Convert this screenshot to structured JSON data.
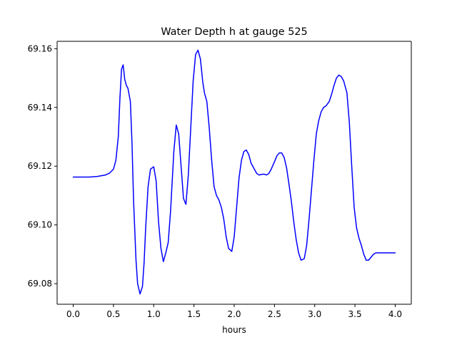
{
  "chart_data": {
    "type": "line",
    "title": "Water Depth h at gauge 525",
    "xlabel": "hours",
    "ylabel": "",
    "xlim": [
      -0.2,
      4.2
    ],
    "ylim": [
      69.073,
      69.1625
    ],
    "xticks": [
      0.0,
      0.5,
      1.0,
      1.5,
      2.0,
      2.5,
      3.0,
      3.5,
      4.0
    ],
    "xtick_labels": [
      "0.0",
      "0.5",
      "1.0",
      "1.5",
      "2.0",
      "2.5",
      "3.0",
      "3.5",
      "4.0"
    ],
    "yticks": [
      69.08,
      69.1,
      69.12,
      69.14,
      69.16
    ],
    "ytick_labels": [
      "69.08",
      "69.10",
      "69.12",
      "69.14",
      "69.16"
    ],
    "grid": false,
    "series": [
      {
        "color": "#0000ff",
        "x": [
          0.0,
          0.1,
          0.2,
          0.3,
          0.4,
          0.45,
          0.5,
          0.53,
          0.56,
          0.58,
          0.6,
          0.62,
          0.64,
          0.66,
          0.68,
          0.71,
          0.73,
          0.75,
          0.78,
          0.8,
          0.83,
          0.86,
          0.88,
          0.9,
          0.93,
          0.96,
          1.0,
          1.03,
          1.06,
          1.09,
          1.12,
          1.15,
          1.18,
          1.21,
          1.25,
          1.28,
          1.31,
          1.34,
          1.37,
          1.4,
          1.43,
          1.46,
          1.49,
          1.52,
          1.55,
          1.58,
          1.61,
          1.63,
          1.66,
          1.69,
          1.72,
          1.75,
          1.78,
          1.81,
          1.84,
          1.87,
          1.9,
          1.93,
          1.97,
          2.0,
          2.03,
          2.06,
          2.09,
          2.12,
          2.15,
          2.18,
          2.21,
          2.25,
          2.28,
          2.31,
          2.34,
          2.37,
          2.4,
          2.43,
          2.46,
          2.5,
          2.53,
          2.56,
          2.59,
          2.62,
          2.65,
          2.68,
          2.71,
          2.74,
          2.77,
          2.8,
          2.83,
          2.87,
          2.9,
          2.93,
          2.96,
          2.99,
          3.02,
          3.05,
          3.08,
          3.11,
          3.14,
          3.18,
          3.21,
          3.24,
          3.27,
          3.3,
          3.33,
          3.36,
          3.4,
          3.43,
          3.46,
          3.49,
          3.52,
          3.55,
          3.58,
          3.61,
          3.64,
          3.67,
          3.7,
          3.73,
          3.76,
          3.79,
          3.82,
          3.85,
          3.88,
          3.91,
          3.94,
          3.97,
          4.0
        ],
        "y": [
          69.1163,
          69.1163,
          69.1163,
          69.1165,
          69.117,
          69.1176,
          69.119,
          69.122,
          69.13,
          69.143,
          69.153,
          69.1545,
          69.1495,
          69.1475,
          69.1465,
          69.142,
          69.128,
          69.108,
          69.088,
          69.08,
          69.0765,
          69.079,
          69.087,
          69.099,
          69.113,
          69.119,
          69.1198,
          69.115,
          69.101,
          69.092,
          69.0875,
          69.0905,
          69.094,
          69.105,
          69.125,
          69.134,
          69.131,
          69.12,
          69.109,
          69.107,
          69.117,
          69.133,
          69.149,
          69.158,
          69.1595,
          69.1565,
          69.1485,
          69.145,
          69.142,
          69.133,
          69.122,
          69.113,
          69.11,
          69.1085,
          69.106,
          69.102,
          69.096,
          69.092,
          69.091,
          69.096,
          69.106,
          69.116,
          69.122,
          69.125,
          69.1255,
          69.124,
          69.121,
          69.119,
          69.1175,
          69.117,
          69.1172,
          69.1173,
          69.117,
          69.1175,
          69.119,
          69.1215,
          69.1235,
          69.1245,
          69.1245,
          69.123,
          69.1195,
          69.114,
          69.108,
          69.101,
          69.095,
          69.0905,
          69.088,
          69.0885,
          69.093,
          69.102,
          69.112,
          69.122,
          69.131,
          69.1355,
          69.1385,
          69.14,
          69.1405,
          69.142,
          69.1445,
          69.1475,
          69.15,
          69.151,
          69.1505,
          69.149,
          69.145,
          69.135,
          69.12,
          69.106,
          69.099,
          69.0955,
          69.093,
          69.09,
          69.088,
          69.088,
          69.089,
          69.09,
          69.0905,
          69.0905,
          69.0905,
          69.0905,
          69.0905,
          69.0905,
          69.0905,
          69.0905,
          69.0905
        ]
      }
    ]
  }
}
